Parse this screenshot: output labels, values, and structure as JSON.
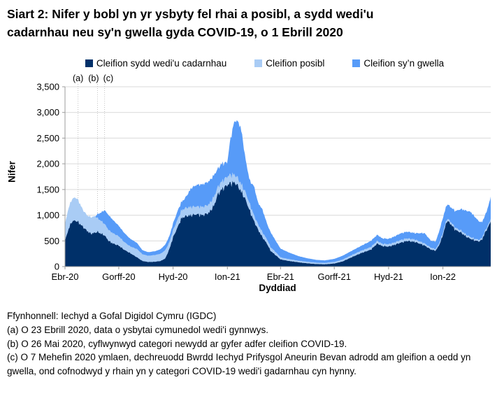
{
  "title": "Siart 2: Nifer y bobl yn yr ysbyty fel rhai a posibl, a sydd wedi'u cadarnhau neu sy'n gwella gyda COVID-19, o 1 Ebrill 2020",
  "chart_data": {
    "type": "area",
    "stacked": true,
    "start_date": "2020-04-01",
    "x_unit": "days_since_start",
    "xlabel": "Dyddiad",
    "ylabel": "Nifer",
    "ylim": [
      0,
      3500
    ],
    "ytick_step": 500,
    "ytick_labels": [
      "0",
      "500",
      "1,000",
      "1,500",
      "2,000",
      "2,500",
      "3,000",
      "3,500"
    ],
    "xticks": [
      {
        "label": "Ebr-20",
        "day": 0
      },
      {
        "label": "Gorff-20",
        "day": 91
      },
      {
        "label": "Hyd-20",
        "day": 183
      },
      {
        "label": "Ion-21",
        "day": 275
      },
      {
        "label": "Ebr-21",
        "day": 365
      },
      {
        "label": "Gorff-21",
        "day": 456
      },
      {
        "label": "Hyd-21",
        "day": 548
      },
      {
        "label": "Ion-22",
        "day": 640
      }
    ],
    "x_days": [
      0,
      5,
      11,
      17,
      22,
      30,
      37,
      44,
      51,
      55,
      61,
      67,
      74,
      81,
      91,
      100,
      110,
      122,
      131,
      141,
      153,
      162,
      170,
      177,
      183,
      192,
      197,
      204,
      214,
      223,
      233,
      244,
      253,
      258,
      265,
      275,
      279,
      286,
      291,
      298,
      306,
      313,
      320,
      327,
      334,
      343,
      348,
      357,
      365,
      379,
      395,
      409,
      426,
      440,
      456,
      470,
      487,
      501,
      518,
      529,
      537,
      548,
      557,
      567,
      579,
      593,
      609,
      620,
      628,
      635,
      640,
      647,
      654,
      661,
      671,
      680,
      687,
      694,
      701,
      706,
      712,
      718,
      721
    ],
    "series": [
      {
        "name": "Cleifion sydd wedi'u cadarnhau",
        "color": "#003069",
        "values": [
          500,
          700,
          870,
          900,
          870,
          780,
          700,
          640,
          660,
          680,
          640,
          610,
          500,
          450,
          410,
          330,
          265,
          180,
          110,
          90,
          95,
          110,
          160,
          350,
          570,
          800,
          940,
          980,
          1000,
          1020,
          1000,
          1050,
          1200,
          1390,
          1500,
          1590,
          1620,
          1640,
          1600,
          1470,
          1300,
          1080,
          890,
          720,
          580,
          430,
          310,
          220,
          140,
          110,
          85,
          65,
          50,
          45,
          60,
          100,
          190,
          260,
          330,
          450,
          400,
          390,
          420,
          460,
          500,
          480,
          410,
          330,
          310,
          450,
          620,
          900,
          820,
          715,
          660,
          580,
          540,
          510,
          490,
          520,
          675,
          800,
          890
        ]
      },
      {
        "name": "Cleifion posibl",
        "color": "#a9ccf5",
        "values": [
          320,
          400,
          430,
          450,
          430,
          330,
          300,
          320,
          320,
          260,
          250,
          220,
          210,
          200,
          180,
          150,
          130,
          160,
          130,
          120,
          130,
          140,
          160,
          130,
          135,
          150,
          150,
          160,
          160,
          150,
          160,
          160,
          170,
          140,
          150,
          165,
          160,
          150,
          150,
          140,
          140,
          130,
          110,
          100,
          95,
          80,
          70,
          60,
          40,
          35,
          30,
          30,
          25,
          25,
          30,
          35,
          40,
          45,
          50,
          50,
          45,
          45,
          45,
          50,
          50,
          45,
          40,
          35,
          30,
          35,
          40,
          40,
          40,
          40,
          40,
          35,
          35,
          30,
          30,
          30,
          35,
          35,
          40
        ]
      },
      {
        "name": "Cleifion sy’n gwella",
        "color": "#579bf8",
        "values": [
          0,
          0,
          0,
          0,
          0,
          0,
          0,
          0,
          0,
          80,
          160,
          270,
          290,
          260,
          205,
          180,
          150,
          120,
          80,
          70,
          75,
          90,
          110,
          120,
          135,
          170,
          160,
          200,
          370,
          420,
          440,
          450,
          420,
          360,
          350,
          275,
          620,
          1010,
          1100,
          1090,
          630,
          450,
          570,
          420,
          445,
          300,
          295,
          220,
          170,
          130,
          90,
          70,
          55,
          50,
          60,
          75,
          85,
          95,
          120,
          120,
          105,
          105,
          115,
          130,
          130,
          125,
          200,
          135,
          150,
          250,
          290,
          280,
          290,
          325,
          420,
          470,
          490,
          430,
          360,
          310,
          300,
          380,
          430
        ]
      }
    ],
    "annotations": [
      {
        "label": "(a)",
        "day": 22
      },
      {
        "label": "(b)",
        "day": 55
      },
      {
        "label": "(c)",
        "day": 67
      }
    ],
    "grid": true,
    "legend_position": "top",
    "axis_color": "#9b9b9b",
    "grid_color": "#d9d9d9",
    "annotation_line_color": "#c3c3c3"
  },
  "footnotes": [
    "Ffynhonnell: Iechyd a Gofal Digidol Cymru (IGDC)",
    "(a) O 23 Ebrill 2020, data o ysbytai cymunedol wedi'i gynnwys.",
    "(b) O 26 Mai 2020, cyflwynwyd categori newydd ar gyfer adfer cleifion COVID-19.",
    "(c) O 7 Mehefin 2020 ymlaen, dechreuodd Bwrdd Iechyd Prifysgol Aneurin Bevan adrodd am gleifion a oedd yn gwella, ond cofnodwyd y rhain yn y categori COVID-19 wedi'i gadarnhau cyn hynny."
  ]
}
